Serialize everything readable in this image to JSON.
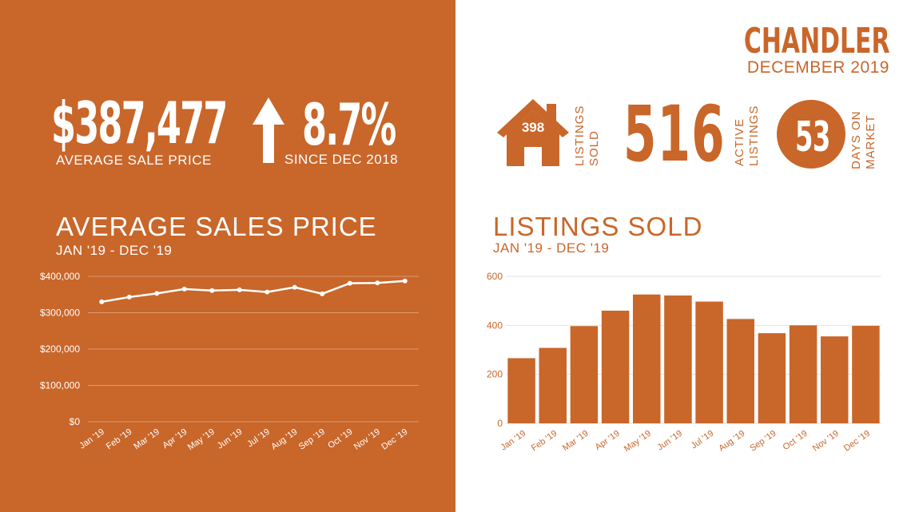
{
  "colors": {
    "accent": "#c9662a",
    "white": "#ffffff"
  },
  "left": {
    "avg_price": "$387,477",
    "avg_price_label": "AVERAGE  SALE PRICE",
    "change": "8.7%",
    "change_label": "SINCE DEC 2018",
    "trend_icon": "arrow-up-icon",
    "chart_title": "AVERAGE SALES PRICE",
    "chart_sub": "JAN '19 - DEC '19"
  },
  "right": {
    "city": "CHANDLER",
    "period": "DECEMBER 2019",
    "listings_sold": "398",
    "listings_sold_label_1": "LISTINGS",
    "listings_sold_label_2": "SOLD",
    "active": "516",
    "active_label_1": "ACTIVE",
    "active_label_2": "LISTINGS",
    "dom": "53",
    "dom_label_1": "DAYS ON",
    "dom_label_2": "MARKET",
    "house_icon": "house-icon",
    "chart_title": "LISTINGS SOLD",
    "chart_sub": "JAN '19 - DEC '19"
  },
  "chart_data": [
    {
      "type": "line",
      "categories": [
        "Jan '19",
        "Feb '19",
        "Mar '19",
        "Apr '19",
        "May '19",
        "Jun '19",
        "Jul '19",
        "Aug '19",
        "Sep '19",
        "Oct '19",
        "Nov '19",
        "Dec '19"
      ],
      "values": [
        330000,
        343000,
        353000,
        365000,
        361000,
        363000,
        357000,
        370000,
        352000,
        381000,
        382000,
        387477
      ],
      "ylim": [
        0,
        400000
      ],
      "yticks": [
        "$0",
        "$100,000",
        "$200,000",
        "$300,000",
        "$400,000"
      ],
      "ytick_values": [
        0,
        100000,
        200000,
        300000,
        400000
      ],
      "grid": true
    },
    {
      "type": "bar",
      "categories": [
        "Jan '19",
        "Feb '19",
        "Mar '19",
        "Apr '19",
        "May '19",
        "Jun '19",
        "Jul '19",
        "Aug '19",
        "Sep '19",
        "Oct '19",
        "Nov '19",
        "Dec '19"
      ],
      "values": [
        266,
        308,
        397,
        460,
        526,
        522,
        497,
        426,
        368,
        400,
        355,
        398
      ],
      "ylim": [
        0,
        600
      ],
      "yticks": [
        "0",
        "200",
        "400",
        "600"
      ],
      "ytick_values": [
        0,
        200,
        400,
        600
      ],
      "grid": true
    }
  ]
}
